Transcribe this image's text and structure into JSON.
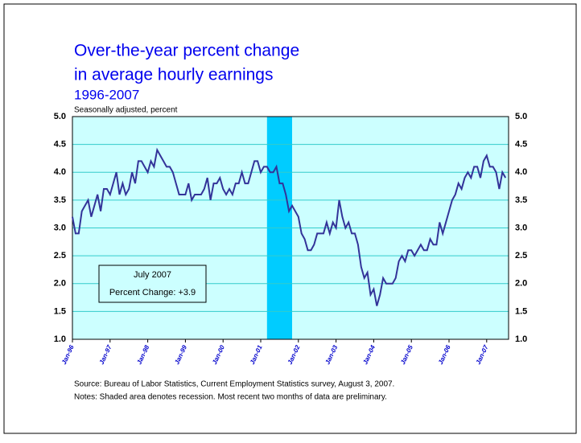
{
  "chart_data": {
    "type": "line",
    "title": [
      "Over-the-year percent change",
      "in average hourly earnings"
    ],
    "subtitle": "1996-2007",
    "y_label": "Seasonally adjusted, percent",
    "source": "Source:  Bureau of Labor Statistics, Current Employment Statistics survey, August 3, 2007.",
    "notes": "Notes:  Shaded area denotes recession.  Most recent two months of data are preliminary.",
    "annotation": [
      "July 2007",
      "Percent Change:  +3.9"
    ],
    "shaded_range": [
      62,
      70
    ],
    "shade_color": "#00ccff",
    "background": "#ccffff",
    "grid": true,
    "ylim": [
      1,
      5
    ],
    "yticks": [
      {
        "value": 1,
        "label": "1.0"
      },
      {
        "value": 1.5,
        "label": "1.5"
      },
      {
        "value": 2,
        "label": "2.0"
      },
      {
        "value": 2.5,
        "label": "2.5"
      },
      {
        "value": 3,
        "label": "3.0"
      },
      {
        "value": 3.5,
        "label": "3.5"
      },
      {
        "value": 4,
        "label": "4.0"
      },
      {
        "value": 4.5,
        "label": "4.5"
      },
      {
        "value": 5,
        "label": "5.0"
      }
    ],
    "categories": [
      "Jan-96",
      null,
      null,
      null,
      null,
      null,
      null,
      null,
      null,
      null,
      null,
      null,
      "Jan-97",
      null,
      null,
      null,
      null,
      null,
      null,
      null,
      null,
      null,
      null,
      null,
      "Jan-98",
      null,
      null,
      null,
      null,
      null,
      null,
      null,
      null,
      null,
      null,
      null,
      "Jan-99",
      null,
      null,
      null,
      null,
      null,
      null,
      null,
      null,
      null,
      null,
      null,
      "Jan-00",
      null,
      null,
      null,
      null,
      null,
      null,
      null,
      null,
      null,
      null,
      null,
      "Jan-01",
      null,
      null,
      null,
      null,
      null,
      null,
      null,
      null,
      null,
      null,
      null,
      "Jan-02",
      null,
      null,
      null,
      null,
      null,
      null,
      null,
      null,
      null,
      null,
      null,
      "Jan-03",
      null,
      null,
      null,
      null,
      null,
      null,
      null,
      null,
      null,
      null,
      null,
      "Jan-04",
      null,
      null,
      null,
      null,
      null,
      null,
      null,
      null,
      null,
      null,
      null,
      "Jan-05",
      null,
      null,
      null,
      null,
      null,
      null,
      null,
      null,
      null,
      null,
      null,
      "Jan-06",
      null,
      null,
      null,
      null,
      null,
      null,
      null,
      null,
      null,
      null,
      null,
      "Jan-07",
      null,
      null,
      null,
      null,
      null,
      null
    ],
    "series": [
      {
        "name": "Average hourly earnings",
        "color": "#333399",
        "values": [
          3.2,
          2.9,
          2.9,
          3.3,
          3.4,
          3.5,
          3.2,
          3.4,
          3.6,
          3.3,
          3.7,
          3.7,
          3.6,
          3.8,
          4.0,
          3.6,
          3.8,
          3.6,
          3.7,
          4.0,
          3.8,
          4.2,
          4.2,
          4.1,
          4.0,
          4.2,
          4.1,
          4.4,
          4.3,
          4.2,
          4.1,
          4.1,
          4.0,
          3.8,
          3.6,
          3.6,
          3.6,
          3.8,
          3.5,
          3.6,
          3.6,
          3.6,
          3.7,
          3.9,
          3.5,
          3.8,
          3.8,
          3.9,
          3.7,
          3.6,
          3.7,
          3.6,
          3.8,
          3.8,
          4.0,
          3.8,
          3.8,
          4.0,
          4.2,
          4.2,
          4.0,
          4.1,
          4.1,
          4.0,
          4.0,
          4.1,
          3.8,
          3.8,
          3.6,
          3.3,
          3.4,
          3.3,
          3.2,
          2.9,
          2.8,
          2.6,
          2.6,
          2.7,
          2.9,
          2.9,
          2.9,
          3.1,
          2.9,
          3.1,
          3.0,
          3.5,
          3.2,
          3.0,
          3.1,
          2.9,
          2.9,
          2.7,
          2.3,
          2.1,
          2.2,
          1.8,
          1.9,
          1.6,
          1.8,
          2.1,
          2.0,
          2.0,
          2.0,
          2.1,
          2.4,
          2.5,
          2.4,
          2.6,
          2.6,
          2.5,
          2.6,
          2.7,
          2.6,
          2.6,
          2.8,
          2.7,
          2.7,
          3.1,
          2.9,
          3.1,
          3.3,
          3.5,
          3.6,
          3.8,
          3.7,
          3.9,
          4.0,
          3.9,
          4.1,
          4.1,
          3.9,
          4.2,
          4.3,
          4.1,
          4.1,
          4.0,
          3.7,
          4.0,
          3.9
        ]
      }
    ]
  }
}
